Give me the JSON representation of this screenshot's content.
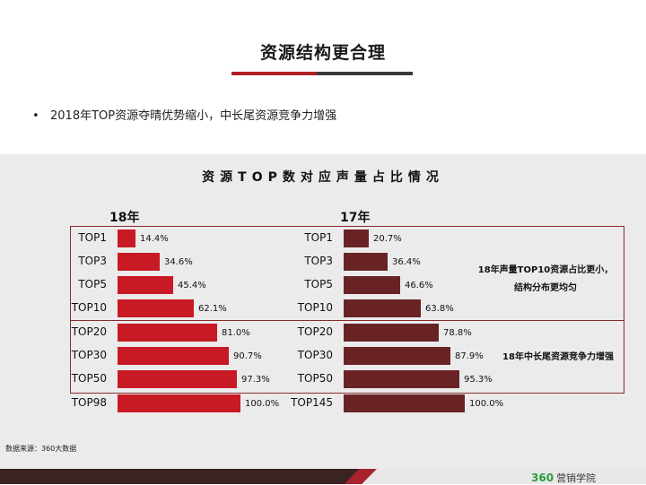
{
  "slide": {
    "title": "资源结构更合理",
    "bullet": "2018年TOP资源夺晴优势缩小，中长尾资源竞争力增强",
    "source": "数据来源：360大数据",
    "brand_num": "360",
    "brand_text": "营销学院"
  },
  "colors": {
    "bar_2018": "#c81a24",
    "bar_2017": "#6a2325",
    "accent_red": "#b21e28",
    "footer_dark": "#3b2323",
    "box_border": "#8a2b2b"
  },
  "chart_data": {
    "type": "bar",
    "orientation": "horizontal",
    "title": "资源TOP数对应声量占比情况",
    "panels": [
      {
        "name": "18年",
        "categories": [
          "TOP1",
          "TOP3",
          "TOP5",
          "TOP10",
          "TOP20",
          "TOP30",
          "TOP50",
          "TOP98"
        ],
        "values": [
          14.4,
          34.6,
          45.4,
          62.1,
          81.0,
          90.7,
          97.3,
          100.0
        ],
        "labels": [
          "14.4%",
          "34.6%",
          "45.4%",
          "62.1%",
          "81.0%",
          "90.7%",
          "97.3%",
          "100.0%"
        ]
      },
      {
        "name": "17年",
        "categories": [
          "TOP1",
          "TOP3",
          "TOP5",
          "TOP10",
          "TOP20",
          "TOP30",
          "TOP50",
          "TOP145"
        ],
        "values": [
          20.7,
          36.4,
          46.6,
          63.8,
          78.8,
          87.9,
          95.3,
          100.0
        ],
        "labels": [
          "20.7%",
          "36.4%",
          "46.6%",
          "63.8%",
          "78.8%",
          "87.9%",
          "95.3%",
          "100.0%"
        ]
      }
    ],
    "xlim": [
      0,
      100
    ],
    "annotations": [
      "18年声量TOP10资源占比更小，",
      "结构分布更均匀",
      "18年中长尾资源竞争力增强"
    ]
  }
}
